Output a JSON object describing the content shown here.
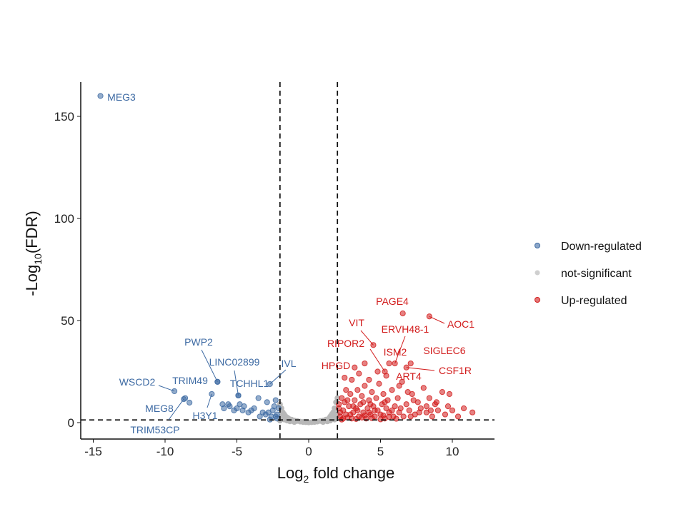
{
  "chart_data": {
    "type": "scatter",
    "title": "",
    "xlabel": {
      "prefix": "Log",
      "sub": "2",
      "suffix": " fold change"
    },
    "ylabel": {
      "prefix": "-Log",
      "sub": "10",
      "suffix": "(FDR)"
    },
    "xlim": [
      -16,
      13
    ],
    "ylim": [
      -8,
      167
    ],
    "xticks": [
      -15,
      -10,
      -5,
      0,
      5,
      10
    ],
    "yticks": [
      0,
      50,
      100,
      150
    ],
    "thresholds": {
      "log2fc": [
        -2,
        2
      ],
      "neg_log10_fdr": 1.3
    },
    "colors": {
      "down": "#3d6aa3",
      "ns": "#b8b8b8",
      "up": "#d21a1a"
    },
    "legend": {
      "position": "right",
      "entries": [
        {
          "key": "down",
          "label": "Down-regulated"
        },
        {
          "key": "ns",
          "label": "not-significant"
        },
        {
          "key": "up",
          "label": "Up-regulated"
        }
      ]
    },
    "labeled_points": [
      {
        "gene": "MEG3",
        "x": -14.5,
        "y": 160,
        "group": "down"
      },
      {
        "gene": "WSCD2",
        "x": -9.35,
        "y": 15.4,
        "group": "down"
      },
      {
        "gene": "MEG8",
        "x": -8.3,
        "y": 9.8,
        "group": "down"
      },
      {
        "gene": "TRIM53CP",
        "x": -8.7,
        "y": 11.5,
        "group": "down"
      },
      {
        "gene": "TRIM49",
        "x": -6.35,
        "y": 20,
        "group": "down"
      },
      {
        "gene": "H3Y1",
        "x": -6.75,
        "y": 14,
        "group": "down"
      },
      {
        "gene": "PWP2",
        "x": -6.35,
        "y": 20,
        "group": "down"
      },
      {
        "gene": "LINC02899",
        "x": -4.9,
        "y": 13.3,
        "group": "down"
      },
      {
        "gene": "TCHHL1",
        "x": -4.9,
        "y": 13.3,
        "group": "down"
      },
      {
        "gene": "IVL",
        "x": -2.7,
        "y": 18.9,
        "group": "down"
      },
      {
        "gene": "PAGE4",
        "x": 6.55,
        "y": 53.5,
        "group": "up"
      },
      {
        "gene": "AOC1",
        "x": 8.4,
        "y": 52,
        "group": "up"
      },
      {
        "gene": "VIT",
        "x": 4.5,
        "y": 38,
        "group": "up"
      },
      {
        "gene": "ERVH48-1",
        "x": 6.0,
        "y": 29,
        "group": "up"
      },
      {
        "gene": "RIPOR2",
        "x": 5.3,
        "y": 25,
        "group": "up"
      },
      {
        "gene": "ISM2",
        "x": 5.6,
        "y": 29,
        "group": "up"
      },
      {
        "gene": "SIGLEC6",
        "x": 7.1,
        "y": 29,
        "group": "up"
      },
      {
        "gene": "HPGD",
        "x": 3.9,
        "y": 29,
        "group": "up"
      },
      {
        "gene": "CSF1R",
        "x": 6.8,
        "y": 27,
        "group": "up"
      },
      {
        "gene": "ART4",
        "x": 5.4,
        "y": 23,
        "group": "up"
      }
    ],
    "points": {
      "up": [
        [
          2.2,
          3
        ],
        [
          2.4,
          6
        ],
        [
          2.5,
          10
        ],
        [
          2.6,
          4
        ],
        [
          2.8,
          8
        ],
        [
          2.9,
          14
        ],
        [
          3.0,
          2
        ],
        [
          3.1,
          5
        ],
        [
          3.2,
          11
        ],
        [
          3.3,
          7
        ],
        [
          3.4,
          16
        ],
        [
          3.5,
          3
        ],
        [
          3.6,
          9
        ],
        [
          3.7,
          13
        ],
        [
          3.8,
          5
        ],
        [
          3.9,
          18
        ],
        [
          4.0,
          2
        ],
        [
          4.1,
          7
        ],
        [
          4.2,
          11
        ],
        [
          4.3,
          4
        ],
        [
          4.4,
          15
        ],
        [
          4.5,
          8
        ],
        [
          4.6,
          3
        ],
        [
          4.7,
          12
        ],
        [
          4.8,
          6
        ],
        [
          4.9,
          19
        ],
        [
          5.0,
          4
        ],
        [
          5.1,
          9
        ],
        [
          5.2,
          14
        ],
        [
          5.3,
          2
        ],
        [
          5.4,
          7
        ],
        [
          5.5,
          11
        ],
        [
          5.6,
          5
        ],
        [
          5.8,
          16
        ],
        [
          5.9,
          3
        ],
        [
          6.0,
          8
        ],
        [
          6.2,
          12
        ],
        [
          6.3,
          5
        ],
        [
          6.5,
          20
        ],
        [
          6.6,
          3
        ],
        [
          6.8,
          9
        ],
        [
          7.0,
          6
        ],
        [
          7.2,
          14
        ],
        [
          7.4,
          4
        ],
        [
          7.6,
          10
        ],
        [
          7.8,
          7
        ],
        [
          8.0,
          17
        ],
        [
          8.2,
          5
        ],
        [
          8.4,
          12
        ],
        [
          8.6,
          3
        ],
        [
          8.8,
          9
        ],
        [
          9.0,
          6
        ],
        [
          9.3,
          15
        ],
        [
          9.5,
          4
        ],
        [
          9.7,
          8
        ],
        [
          10.0,
          6
        ],
        [
          10.4,
          3
        ],
        [
          10.8,
          7
        ],
        [
          11.4,
          5
        ],
        [
          2.3,
          1.5
        ],
        [
          2.7,
          2.5
        ],
        [
          3.3,
          1.8
        ],
        [
          3.9,
          3.5
        ],
        [
          4.4,
          2.2
        ],
        [
          5.0,
          1.6
        ],
        [
          5.6,
          2.8
        ],
        [
          6.1,
          1.9
        ],
        [
          2.1,
          7
        ],
        [
          2.3,
          12
        ],
        [
          2.6,
          16
        ],
        [
          3.0,
          21
        ],
        [
          3.5,
          24
        ],
        [
          4.2,
          21
        ],
        [
          4.8,
          25
        ],
        [
          6.3,
          18
        ],
        [
          6.9,
          15
        ],
        [
          9.8,
          14
        ],
        [
          3.2,
          27
        ],
        [
          2.5,
          22
        ],
        [
          7.3,
          11
        ],
        [
          8.9,
          10
        ],
        [
          8.2,
          8
        ],
        [
          2.2,
          5
        ],
        [
          2.4,
          2
        ],
        [
          2.9,
          4
        ],
        [
          3.4,
          6
        ],
        [
          3.7,
          2.5
        ],
        [
          4.2,
          5
        ],
        [
          4.6,
          6
        ],
        [
          5.2,
          3.5
        ],
        [
          5.8,
          6
        ],
        [
          6.4,
          7
        ],
        [
          7.1,
          3
        ],
        [
          7.7,
          5
        ],
        [
          8.5,
          6
        ],
        [
          2.1,
          9
        ],
        [
          2.7,
          11
        ],
        [
          3.1,
          8
        ],
        [
          3.8,
          10
        ],
        [
          4.3,
          9
        ],
        [
          5.3,
          10
        ]
      ],
      "down": [
        [
          -2.2,
          4
        ],
        [
          -2.4,
          8
        ],
        [
          -2.3,
          11
        ],
        [
          -2.6,
          3
        ],
        [
          -2.8,
          5
        ],
        [
          -2.5,
          6
        ],
        [
          -3.0,
          4
        ],
        [
          -3.2,
          5
        ],
        [
          -3.4,
          3
        ],
        [
          -3.5,
          12
        ],
        [
          -2.9,
          10
        ],
        [
          -2.2,
          2
        ],
        [
          -2.1,
          7
        ],
        [
          -4.0,
          6
        ],
        [
          -4.2,
          5
        ],
        [
          -4.5,
          8
        ],
        [
          -4.6,
          6
        ],
        [
          -4.8,
          9
        ],
        [
          -5.0,
          7
        ],
        [
          -5.2,
          6
        ],
        [
          -5.5,
          8
        ],
        [
          -5.9,
          7
        ],
        [
          -6.0,
          9
        ],
        [
          -5.6,
          9
        ],
        [
          -3.8,
          7
        ],
        [
          -2.7,
          1.5
        ],
        [
          -8.6,
          12
        ],
        [
          -2.3,
          3
        ]
      ],
      "ns": [
        [
          -2.0,
          9
        ],
        [
          -1.9,
          7
        ],
        [
          -1.8,
          5
        ],
        [
          -1.7,
          4
        ],
        [
          -1.6,
          3
        ],
        [
          -1.5,
          2.5
        ],
        [
          -1.4,
          2
        ],
        [
          -1.2,
          1.5
        ],
        [
          -1.0,
          1
        ],
        [
          -0.8,
          0.8
        ],
        [
          -0.6,
          0.5
        ],
        [
          -0.4,
          0.3
        ],
        [
          -0.2,
          0.2
        ],
        [
          0,
          0.1
        ],
        [
          0.2,
          0.2
        ],
        [
          0.4,
          0.3
        ],
        [
          0.6,
          0.5
        ],
        [
          0.8,
          0.8
        ],
        [
          1.0,
          1
        ],
        [
          1.2,
          1.5
        ],
        [
          1.4,
          2
        ],
        [
          1.5,
          3
        ],
        [
          1.6,
          4
        ],
        [
          1.7,
          5
        ],
        [
          1.8,
          7
        ],
        [
          1.9,
          10
        ],
        [
          2.0,
          12
        ],
        [
          -1.9,
          3
        ],
        [
          -1.7,
          1.5
        ],
        [
          -1.5,
          1
        ],
        [
          -1.3,
          0.6
        ],
        [
          1.3,
          0.6
        ],
        [
          1.5,
          1
        ],
        [
          1.7,
          2
        ],
        [
          1.9,
          3
        ],
        [
          -1.8,
          2
        ],
        [
          1.8,
          1.5
        ],
        [
          -1.0,
          0.3
        ],
        [
          1.0,
          0.3
        ],
        [
          -2.0,
          1
        ],
        [
          2.0,
          4
        ]
      ]
    }
  }
}
